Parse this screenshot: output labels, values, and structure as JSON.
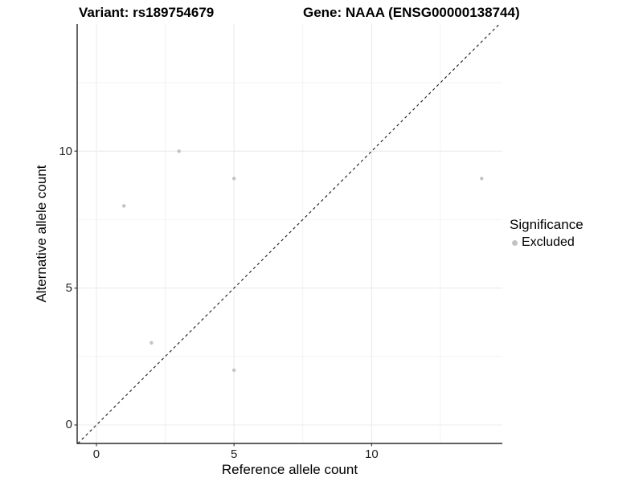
{
  "chart_data": {
    "type": "scatter",
    "titles": {
      "left": "Variant: rs189754679",
      "right": "Gene: NAAA (ENSG00000138744)"
    },
    "xlabel": "Reference allele count",
    "ylabel": "Alternative allele count",
    "xlim": [
      -0.7,
      14.75
    ],
    "ylim": [
      -0.675,
      14.64
    ],
    "x_major_ticks": [
      0,
      5,
      10
    ],
    "y_major_ticks": [
      0,
      5,
      10
    ],
    "x_minor_gridlines": [
      2.5,
      7.5,
      12.5
    ],
    "y_minor_gridlines": [
      2.5,
      7.5,
      12.5
    ],
    "grid": "major+minor",
    "identity_line": {
      "equation": "y = x",
      "style": "dashed",
      "color": "#222222"
    },
    "series": [
      {
        "name": "Excluded",
        "color": "#C3C3C3",
        "marker": "circle",
        "points": [
          {
            "x": 1,
            "y": 8
          },
          {
            "x": 2,
            "y": 3
          },
          {
            "x": 3,
            "y": 10
          },
          {
            "x": 5,
            "y": 2
          },
          {
            "x": 5,
            "y": 9
          },
          {
            "x": 14,
            "y": 9
          }
        ]
      }
    ],
    "legend": {
      "title": "Significance",
      "position": "right",
      "entries": [
        {
          "label": "Excluded",
          "color": "#C3C3C3"
        }
      ]
    }
  },
  "colors": {
    "background": "#FFFFFF",
    "grid_major": "#EBEBEB",
    "grid_minor": "#F1F1F1",
    "axis_line": "#000000",
    "tick_mark": "#333333",
    "tick_label": "#262626",
    "text": "#000000"
  }
}
